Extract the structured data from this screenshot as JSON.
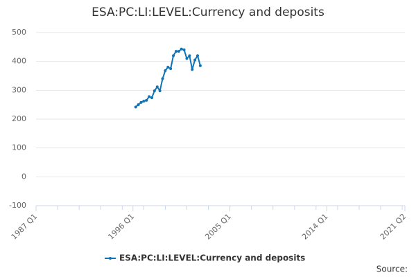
{
  "chart_data": {
    "type": "line",
    "title": "ESA:PC:LI:LEVEL:Currency and deposits",
    "x": [
      "1996 Q2",
      "1996 Q3",
      "1996 Q4",
      "1997 Q1",
      "1997 Q2",
      "1997 Q3",
      "1997 Q4",
      "1998 Q1",
      "1998 Q2",
      "1998 Q3",
      "1998 Q4",
      "1999 Q1",
      "1999 Q2",
      "1999 Q3",
      "1999 Q4",
      "2000 Q1",
      "2000 Q2",
      "2000 Q3",
      "2000 Q4",
      "2001 Q1",
      "2001 Q2",
      "2001 Q3",
      "2001 Q4",
      "2002 Q1",
      "2002 Q2"
    ],
    "series": [
      {
        "name": "ESA:PC:LI:LEVEL:Currency and deposits",
        "color": "#0f73b6",
        "values": [
          242,
          250,
          258,
          262,
          265,
          278,
          274,
          298,
          312,
          298,
          340,
          368,
          380,
          375,
          420,
          435,
          435,
          443,
          440,
          410,
          420,
          372,
          405,
          420,
          385
        ]
      }
    ],
    "xlim": [
      "1987 Q1",
      "2021 Q2"
    ],
    "xticks": [
      "1987 Q1",
      "1996 Q1",
      "2005 Q1",
      "2014 Q1",
      "2021 Q2"
    ],
    "ylim": [
      -100,
      500
    ],
    "yticks": [
      -100,
      0,
      100,
      200,
      300,
      400,
      500
    ],
    "grid": true,
    "source": "Source:"
  }
}
